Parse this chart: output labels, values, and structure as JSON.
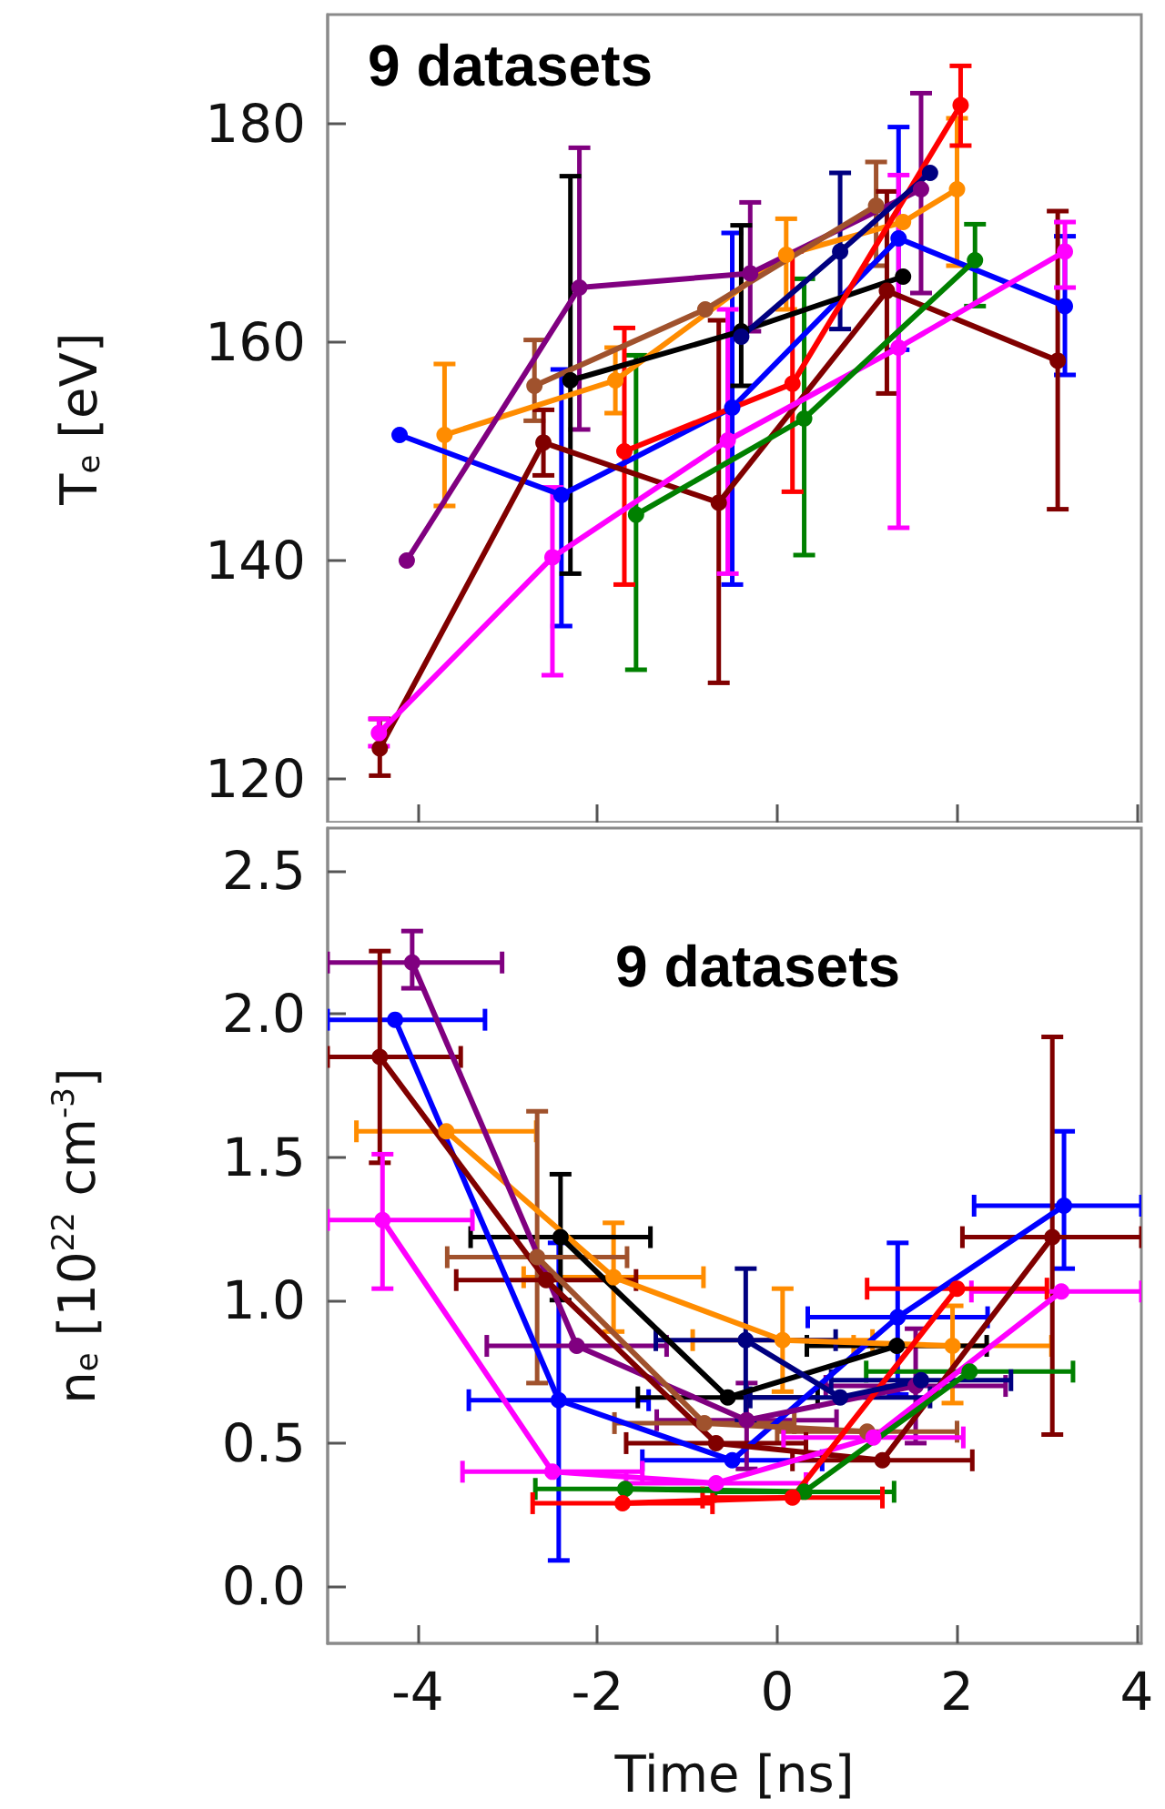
{
  "chart_data": [
    {
      "type": "line",
      "ylabel": "T$_{e}$ [eV]",
      "annotations": [
        "9 datasets"
      ],
      "xlim": [
        -5,
        4.05
      ],
      "xticks": [
        -4,
        -2,
        0,
        2,
        4
      ],
      "ylim": [
        116,
        190
      ],
      "yticks": [
        120,
        140,
        160,
        180
      ],
      "tick_labels": "y",
      "grid": false,
      "marker": "circle",
      "line_style": "solid",
      "series": [
        {
          "color": "#0000ff",
          "x": [
            -4.2,
            -2.4,
            -0.5,
            1.35,
            3.2
          ],
          "values": [
            151.5,
            146,
            154,
            169.5,
            163.3
          ],
          "errors": [
            null,
            [
              134,
              157.5
            ],
            [
              137.8,
              170
            ],
            [
              159.3,
              179.7
            ],
            [
              157,
              169.7
            ]
          ]
        },
        {
          "color": "#ff8c00",
          "x": [
            -3.7,
            -1.8,
            0.1,
            1.4,
            2.0
          ],
          "values": [
            151.5,
            156.5,
            168,
            171,
            174
          ],
          "errors": [
            [
              145,
              158
            ],
            [
              153.5,
              159.5
            ],
            [
              163,
              171.3
            ],
            null,
            [
              167,
              180.5
            ]
          ]
        },
        {
          "color": "#800080",
          "x": [
            -4.12,
            -2.2,
            -0.3,
            1.6
          ],
          "values": [
            140,
            165,
            166.3,
            174
          ],
          "errors": [
            null,
            [
              152,
              177.8
            ],
            [
              161,
              172.8
            ],
            [
              164.5,
              182.8
            ]
          ]
        },
        {
          "color": "#000000",
          "x": [
            -2.3,
            -0.4,
            1.4
          ],
          "values": [
            156.5,
            161,
            166
          ],
          "errors": [
            [
              138.8,
              175.2
            ],
            [
              156,
              170.7
            ],
            null
          ]
        },
        {
          "color": "#a0522d",
          "x": [
            -2.7,
            -0.8,
            1.1
          ],
          "values": [
            156,
            163,
            172.5
          ],
          "errors": [
            [
              152.8,
              160.2
            ],
            null,
            [
              167,
              176.5
            ]
          ]
        },
        {
          "color": "#800000",
          "x": [
            -4.42,
            -2.6,
            -0.65,
            1.22,
            3.12
          ],
          "values": [
            122.8,
            150.8,
            145.3,
            164.7,
            158.3
          ],
          "errors": [
            [
              120.3,
              125.5
            ],
            [
              147.8,
              153.8
            ],
            [
              128.8,
              162
            ],
            [
              155.3,
              173.8
            ],
            [
              144.7,
              172
            ]
          ]
        },
        {
          "color": "#ff00ff",
          "x": [
            -4.43,
            -2.5,
            -0.55,
            1.35,
            3.2
          ],
          "values": [
            124.2,
            140.3,
            151,
            159.5,
            168.3
          ],
          "errors": [
            [
              123,
              125.5
            ],
            [
              129.5,
              146.7
            ],
            [
              138.8,
              163
            ],
            [
              143,
              175.3
            ],
            [
              165,
              171
            ]
          ]
        },
        {
          "color": "#008000",
          "x": [
            -1.57,
            0.3,
            2.2
          ],
          "values": [
            144.2,
            153,
            167.5
          ],
          "errors": [
            [
              130,
              158.8
            ],
            [
              140.5,
              165.8
            ],
            [
              163.3,
              170.8
            ]
          ]
        },
        {
          "color": "#ff0000",
          "x": [
            -1.7,
            0.17,
            2.04
          ],
          "values": [
            150,
            156.2,
            181.7
          ],
          "errors": [
            [
              137.8,
              161.3
            ],
            [
              146.3,
              168.3
            ],
            [
              178,
              185.3
            ]
          ]
        },
        {
          "color": "#000080",
          "x": [
            -0.4,
            0.7,
            1.7
          ],
          "values": [
            160.5,
            168.3,
            175.5
          ],
          "errors": [
            null,
            [
              161.2,
              175.5
            ],
            null
          ]
        }
      ]
    },
    {
      "type": "line",
      "xlabel": "Time [ns]",
      "ylabel": "n$_{e}$ [10$^{22}$ cm$^{-3}$]",
      "annotations": [
        "9 datasets"
      ],
      "xlim": [
        -5,
        4.05
      ],
      "xticks": [
        -4,
        -2,
        0,
        2,
        4
      ],
      "ylim": [
        -0.2,
        2.65
      ],
      "yticks": [
        {
          "value": 0,
          "label": "0.0"
        },
        0.5,
        {
          "value": 1,
          "label": "1.0"
        },
        1.5,
        {
          "value": 2,
          "label": "2.0"
        },
        2.5
      ],
      "grid": false,
      "marker": "circle",
      "line_style": "solid",
      "series": [
        {
          "color": "#0000ff",
          "x": [
            -4.25,
            -2.43,
            -0.5,
            1.34,
            3.19
          ],
          "values": [
            1.98,
            0.65,
            0.44,
            0.94,
            1.33
          ],
          "errors": [
            null,
            [
              0.09,
              1.2
            ],
            null,
            [
              0.67,
              1.2
            ],
            [
              1.11,
              1.59
            ]
          ],
          "xerrors": [
            [
              -5,
              -3.25
            ],
            1,
            1,
            1,
            [
              2.19,
              4.05
            ]
          ]
        },
        {
          "color": "#ff8c00",
          "x": [
            -3.68,
            -1.82,
            0.06,
            1.95
          ],
          "values": [
            1.59,
            1.08,
            0.86,
            0.84
          ],
          "errors": [
            null,
            [
              0.89,
              1.27
            ],
            [
              0.68,
              1.04
            ],
            [
              0.64,
              0.98
            ]
          ],
          "xerrors": [
            1,
            1,
            1,
            1.1
          ]
        },
        {
          "color": "#800080",
          "x": [
            -4.06,
            -2.23,
            -0.34,
            1.54
          ],
          "values": [
            2.18,
            0.84,
            0.58,
            0.7
          ],
          "errors": [
            [
              2.09,
              2.29
            ],
            null,
            [
              0.41,
              0.71
            ],
            [
              0.5,
              0.9
            ]
          ],
          "xerrors": [
            [
              -5,
              -3.06
            ],
            1,
            1,
            1
          ]
        },
        {
          "color": "#000000",
          "x": [
            -2.41,
            -0.55,
            1.33
          ],
          "values": [
            1.22,
            0.66,
            0.84
          ],
          "errors": [
            [
              1.0,
              1.44
            ],
            null,
            null
          ],
          "xerrors": [
            1,
            1,
            1
          ]
        },
        {
          "color": "#a0522d",
          "x": [
            -2.67,
            -0.81,
            1.0
          ],
          "values": [
            1.15,
            0.57,
            0.54
          ],
          "errors": [
            [
              0.71,
              1.66
            ],
            null,
            null
          ],
          "xerrors": [
            1,
            1,
            1
          ]
        },
        {
          "color": "#800000",
          "x": [
            -4.42,
            -2.57,
            -0.68,
            1.17,
            3.06
          ],
          "values": [
            1.85,
            1.07,
            0.5,
            0.44,
            1.22
          ],
          "errors": [
            [
              1.48,
              2.22
            ],
            null,
            null,
            null,
            [
              0.53,
              1.92
            ]
          ],
          "xerrors": [
            [
              -5,
              -3.52
            ],
            1,
            1,
            1,
            [
              2.06,
              4.05
            ]
          ]
        },
        {
          "color": "#ff00ff",
          "x": [
            -4.39,
            -2.5,
            -0.68,
            1.07,
            3.16
          ],
          "values": [
            1.28,
            0.4,
            0.36,
            0.52,
            1.03
          ],
          "errors": [
            [
              1.04,
              1.51
            ],
            null,
            null,
            null,
            null
          ],
          "xerrors": [
            [
              -5,
              -3.39
            ],
            1,
            1,
            1,
            [
              2.16,
              4.05
            ]
          ]
        },
        {
          "color": "#008000",
          "x": [
            -1.69,
            0.3,
            2.14
          ],
          "values": [
            0.34,
            0.33,
            0.75
          ],
          "xerrors": [
            1,
            1,
            1.15
          ]
        },
        {
          "color": "#ff0000",
          "x": [
            -1.72,
            0.17,
            2.0
          ],
          "values": [
            0.29,
            0.31,
            1.04
          ],
          "xerrors": [
            1,
            1,
            1
          ]
        },
        {
          "color": "#000080",
          "x": [
            -0.35,
            0.7,
            1.6
          ],
          "values": [
            0.86,
            0.66,
            0.72
          ],
          "errors": [
            [
              0.58,
              1.11
            ],
            null,
            null
          ],
          "xerrors": [
            1,
            1,
            1
          ]
        }
      ]
    }
  ]
}
